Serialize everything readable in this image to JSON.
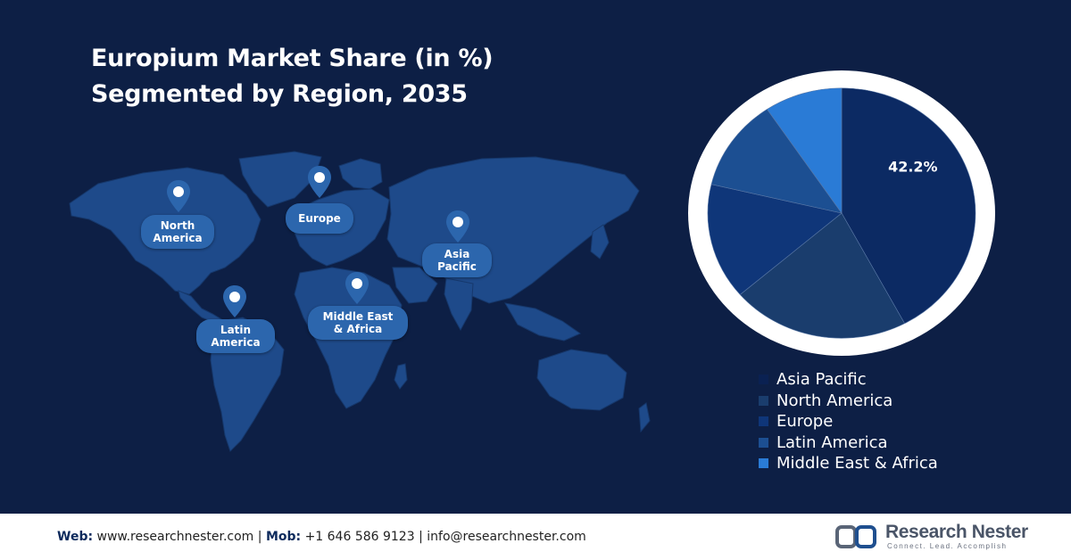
{
  "title": {
    "line1": "Europium Market Share (in %)",
    "line2": "Segmented by Region, 2035"
  },
  "map_labels": [
    {
      "id": "north-america",
      "label": "North\nAmerica"
    },
    {
      "id": "europe",
      "label": "Europe"
    },
    {
      "id": "asia-pacific",
      "label": "Asia\nPacific"
    },
    {
      "id": "latin-america",
      "label": "Latin\nAmerica"
    },
    {
      "id": "middle-east-africa",
      "label": "Middle East\n& Africa"
    }
  ],
  "chart_data": {
    "type": "pie",
    "title": "",
    "slices": [
      {
        "label": "Asia Pacific",
        "value": 42.2,
        "color": "#0c2a63",
        "data_label": "42.2%"
      },
      {
        "label": "North America",
        "value": 21.5,
        "color": "#1a3d6d",
        "data_label": ""
      },
      {
        "label": "Europe",
        "value": 15.0,
        "color": "#0f3679",
        "data_label": ""
      },
      {
        "label": "Latin America",
        "value": 11.9,
        "color": "#1c4f92",
        "data_label": ""
      },
      {
        "label": "Middle East & Africa",
        "value": 9.4,
        "color": "#2a7bd6",
        "data_label": ""
      }
    ],
    "start_angle_deg": 0,
    "direction": "clockwise",
    "legend_placement": "bottom-right"
  },
  "footer": {
    "web_label": "Web:",
    "web_value": "www.researchnester.com",
    "mob_label": "Mob:",
    "mob_value": "+1 646 586 9123",
    "email": "info@researchnester.com",
    "sep": "|"
  },
  "brand": {
    "name": "Research Nester",
    "tagline": "Connect. Lead. Accomplish"
  },
  "colors": {
    "background": "#0d1f45",
    "map_land": "#1e4a8a",
    "pin": "#2c66ad",
    "ring": "#ffffff"
  }
}
